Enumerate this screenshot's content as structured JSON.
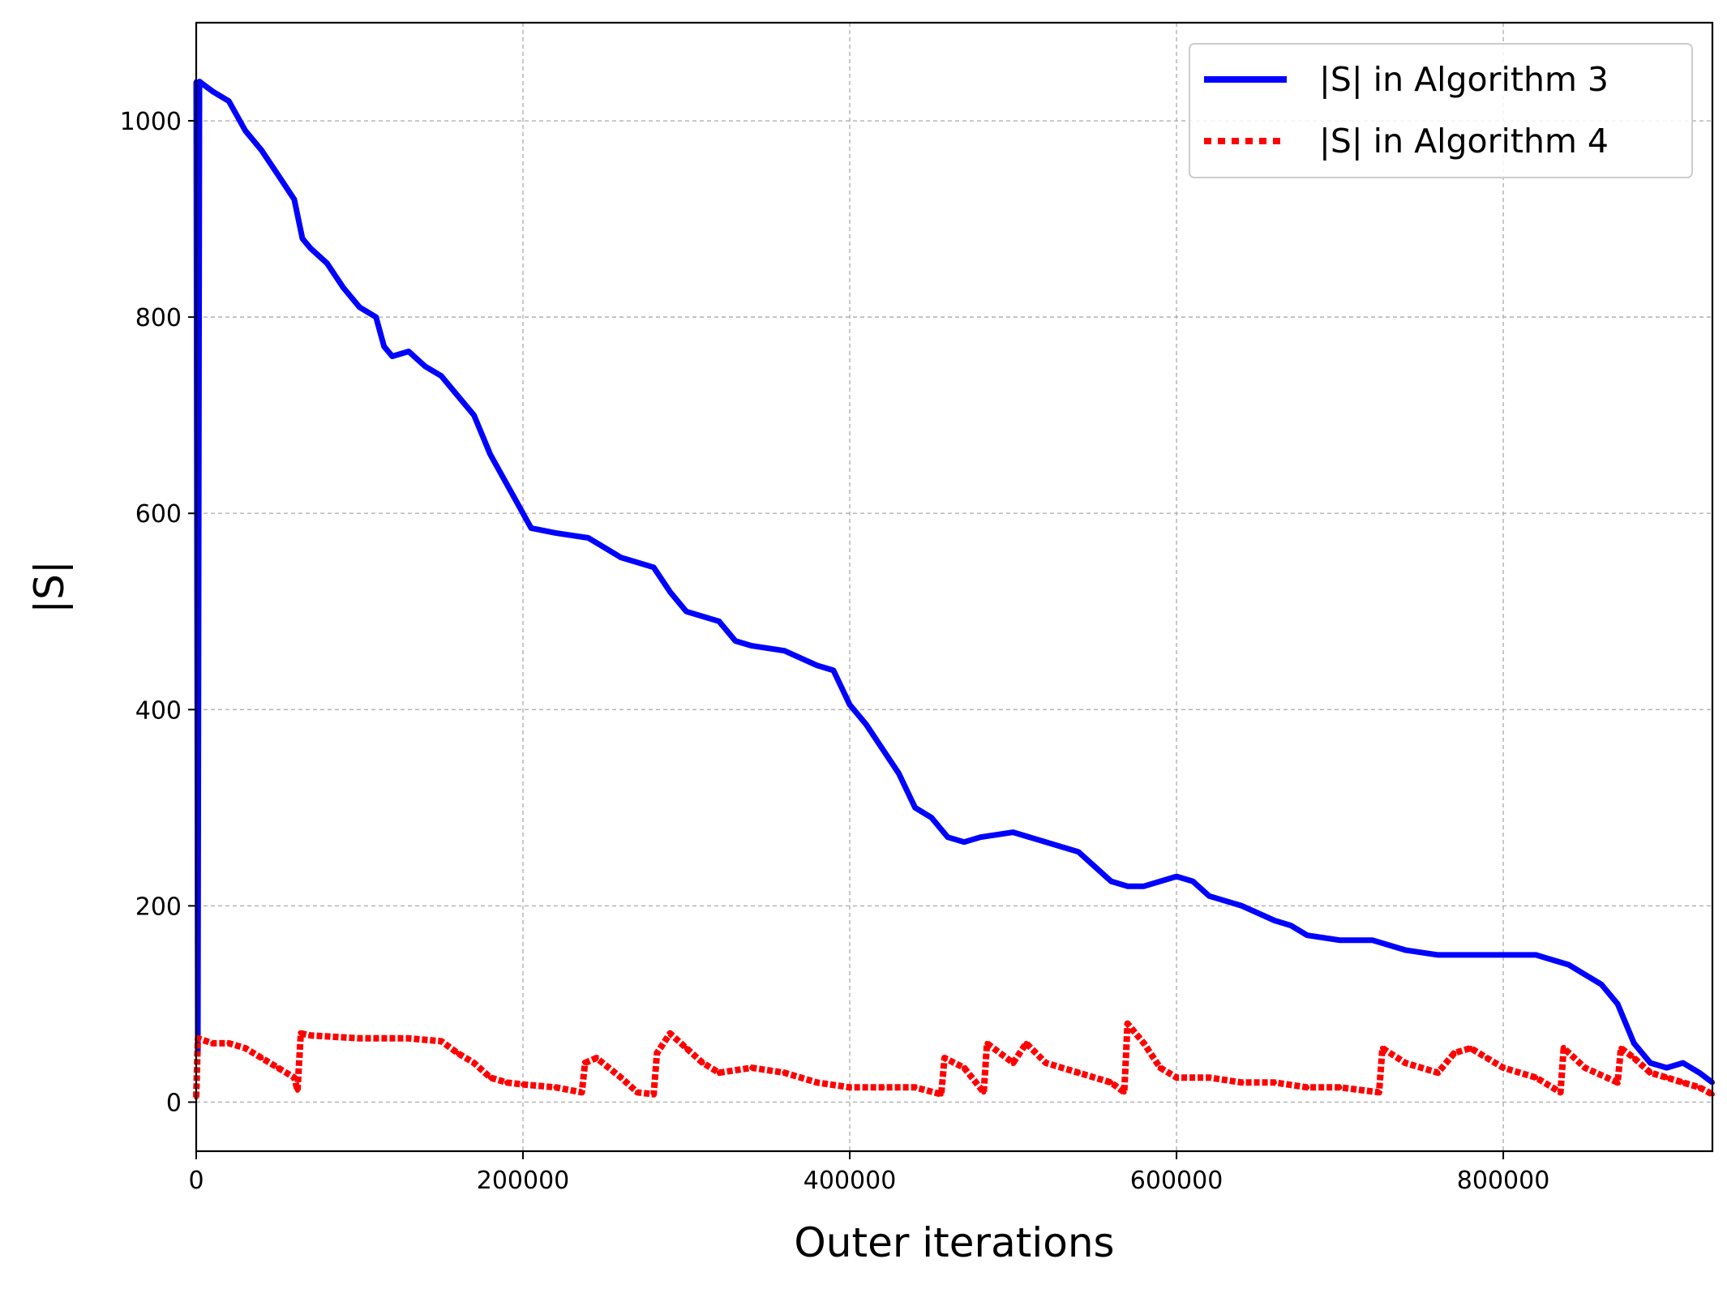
{
  "chart_data": {
    "type": "line",
    "title": "",
    "xlabel": "Outer iterations",
    "ylabel": "|S|",
    "xlim": [
      0,
      928000
    ],
    "ylim": [
      -50,
      1100
    ],
    "xticks": [
      0,
      200000,
      400000,
      600000,
      800000
    ],
    "xtick_labels": [
      "0",
      "200000",
      "400000",
      "600000",
      "800000"
    ],
    "yticks": [
      0,
      200,
      400,
      600,
      800,
      1000
    ],
    "ytick_labels": [
      "0",
      "200",
      "400",
      "600",
      "800",
      "1000"
    ],
    "grid": true,
    "legend_position": "top-right",
    "series": [
      {
        "name": "|S| in Algorithm 3",
        "color": "#0000ff",
        "style": "solid",
        "x": [
          0,
          1000,
          2000,
          10000,
          20000,
          30000,
          40000,
          50000,
          60000,
          65000,
          70000,
          80000,
          90000,
          100000,
          110000,
          115000,
          120000,
          130000,
          140000,
          150000,
          160000,
          170000,
          180000,
          190000,
          200000,
          205000,
          220000,
          240000,
          260000,
          280000,
          290000,
          300000,
          320000,
          330000,
          340000,
          360000,
          380000,
          390000,
          400000,
          410000,
          420000,
          430000,
          440000,
          450000,
          460000,
          470000,
          480000,
          500000,
          520000,
          540000,
          550000,
          560000,
          570000,
          580000,
          600000,
          610000,
          620000,
          640000,
          660000,
          670000,
          680000,
          700000,
          720000,
          740000,
          760000,
          780000,
          800000,
          820000,
          830000,
          840000,
          850000,
          860000,
          870000,
          880000,
          890000,
          900000,
          910000,
          920000,
          928000
        ],
        "y": [
          1040,
          50,
          1040,
          1030,
          1020,
          990,
          970,
          945,
          920,
          880,
          870,
          855,
          830,
          810,
          800,
          770,
          760,
          765,
          750,
          740,
          720,
          700,
          660,
          630,
          600,
          585,
          580,
          575,
          555,
          545,
          520,
          500,
          490,
          470,
          465,
          460,
          445,
          440,
          405,
          385,
          360,
          335,
          300,
          290,
          270,
          265,
          270,
          275,
          265,
          255,
          240,
          225,
          220,
          220,
          230,
          225,
          210,
          200,
          185,
          180,
          170,
          165,
          165,
          155,
          150,
          150,
          150,
          150,
          145,
          140,
          130,
          120,
          100,
          60,
          40,
          35,
          40,
          30,
          20
        ]
      },
      {
        "name": "|S| in Algorithm 4",
        "color": "#ff0000",
        "style": "dotted",
        "x": [
          0,
          1000,
          10000,
          20000,
          30000,
          40000,
          50000,
          60000,
          62000,
          64000,
          70000,
          100000,
          130000,
          150000,
          160000,
          170000,
          180000,
          190000,
          200000,
          220000,
          236000,
          238000,
          245000,
          260000,
          270000,
          280000,
          282000,
          290000,
          300000,
          310000,
          320000,
          340000,
          360000,
          380000,
          400000,
          420000,
          440000,
          456000,
          458000,
          470000,
          482000,
          484000,
          500000,
          508000,
          520000,
          540000,
          560000,
          568000,
          570000,
          580000,
          590000,
          600000,
          620000,
          640000,
          660000,
          680000,
          700000,
          724000,
          726000,
          740000,
          760000,
          770000,
          780000,
          790000,
          800000,
          820000,
          835000,
          837000,
          850000,
          870000,
          872000,
          880000,
          890000,
          900000,
          910000,
          920000,
          928000
        ],
        "y": [
          5,
          65,
          60,
          60,
          55,
          45,
          35,
          25,
          12,
          70,
          68,
          65,
          65,
          62,
          50,
          40,
          25,
          20,
          18,
          15,
          10,
          40,
          45,
          25,
          10,
          8,
          50,
          70,
          55,
          40,
          30,
          35,
          30,
          20,
          15,
          15,
          15,
          8,
          45,
          35,
          10,
          60,
          40,
          60,
          40,
          30,
          20,
          10,
          80,
          60,
          35,
          25,
          25,
          20,
          20,
          15,
          15,
          10,
          55,
          40,
          30,
          50,
          55,
          45,
          35,
          25,
          10,
          55,
          35,
          20,
          55,
          45,
          30,
          25,
          20,
          15,
          8
        ]
      }
    ]
  }
}
